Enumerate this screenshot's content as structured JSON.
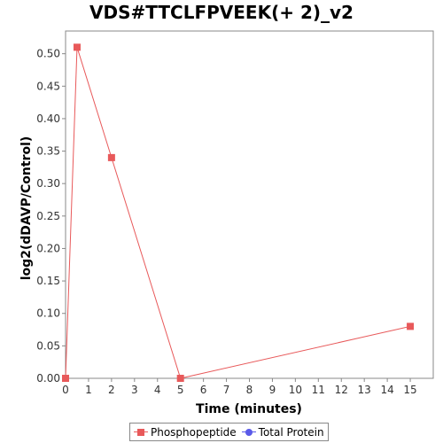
{
  "chart_data": {
    "type": "line",
    "title": "VDS#TTCLFPVEEK(+ 2)_v2",
    "xlabel": "Time (minutes)",
    "ylabel": "log2(dDAVP/Control)",
    "xlim": [
      0,
      16
    ],
    "ylim": [
      0,
      0.535
    ],
    "x_ticks": [
      "0",
      "1",
      "2",
      "3",
      "4",
      "5",
      "6",
      "7",
      "8",
      "9",
      "10",
      "11",
      "12",
      "13",
      "14",
      "15"
    ],
    "y_ticks": [
      "0.00",
      "0.05",
      "0.10",
      "0.15",
      "0.20",
      "0.25",
      "0.30",
      "0.35",
      "0.40",
      "0.45",
      "0.50"
    ],
    "grid": false,
    "legend_position": "bottom",
    "series": [
      {
        "name": "Phosphopeptide",
        "color": "#e8595a",
        "marker": "square",
        "x": [
          0,
          0.5,
          2,
          5,
          15
        ],
        "y": [
          0.0,
          0.51,
          0.34,
          0.0,
          0.08
        ]
      }
    ],
    "legend": [
      {
        "name": "Phosphopeptide",
        "color": "#e8595a",
        "marker": "square"
      },
      {
        "name": "Total Protein",
        "color": "#5a5ae8",
        "marker": "circle"
      }
    ]
  }
}
